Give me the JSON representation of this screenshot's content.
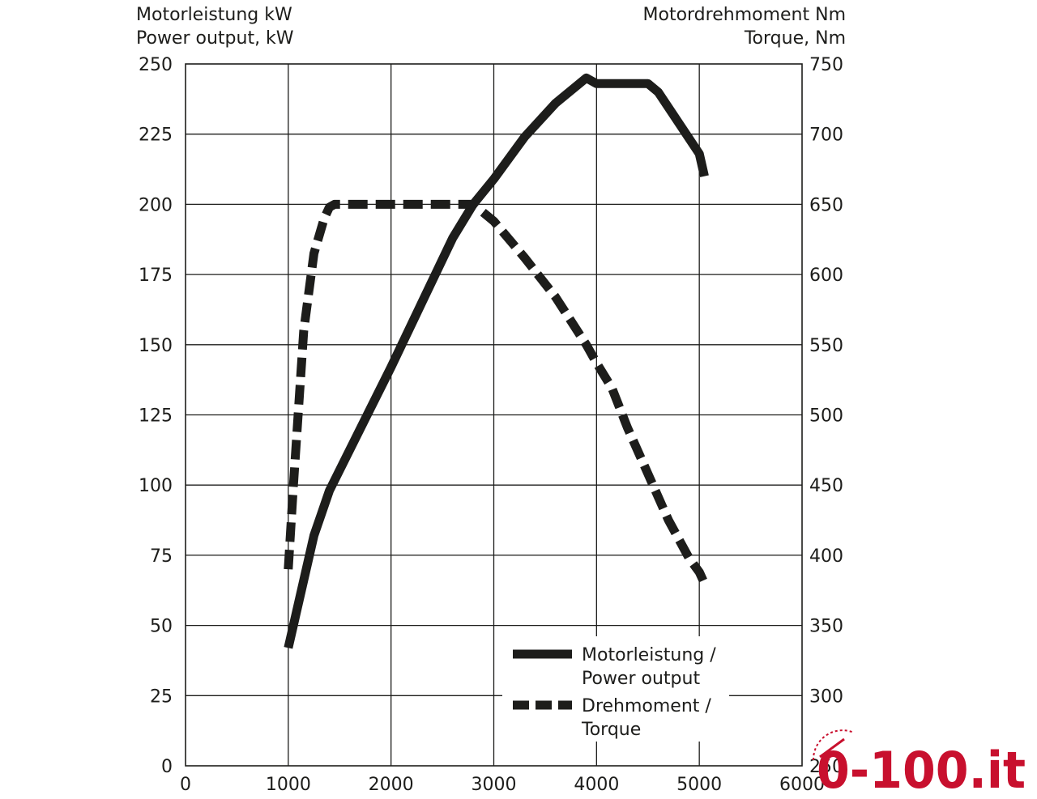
{
  "chart_data": {
    "type": "line",
    "left_axis": {
      "title_de": "Motorleistung kW",
      "title_en": "Power output, kW",
      "range": [
        0,
        250
      ],
      "ticks": [
        0,
        25,
        50,
        75,
        100,
        125,
        150,
        175,
        200,
        225,
        250
      ]
    },
    "right_axis": {
      "title_de": "Motordrehmoment Nm",
      "title_en": "Torque, Nm",
      "range": [
        250,
        750
      ],
      "ticks": [
        250,
        300,
        350,
        400,
        450,
        500,
        550,
        600,
        650,
        700,
        750
      ]
    },
    "x_axis": {
      "range": [
        0,
        6000
      ],
      "ticks": [
        0,
        1000,
        2000,
        3000,
        4000,
        5000,
        6000
      ]
    },
    "grid": true,
    "series": [
      {
        "name_line1": "Motorleistung /",
        "name_line2": "Power output",
        "axis": "left",
        "style": "solid",
        "x": [
          1000,
          1250,
          1400,
          1700,
          2000,
          2300,
          2600,
          2800,
          3000,
          3300,
          3600,
          3900,
          4000,
          4250,
          4500,
          4600,
          5000,
          5050
        ],
        "y": [
          42,
          82,
          98,
          120,
          142,
          165,
          188,
          200,
          209,
          224,
          236,
          245,
          243,
          243,
          243,
          240,
          218,
          210
        ]
      },
      {
        "name_line1": "Drehmoment /",
        "name_line2": "Torque",
        "axis": "right",
        "style": "dashed",
        "x": [
          1000,
          1050,
          1150,
          1250,
          1350,
          1400,
          1450,
          2800,
          3000,
          3300,
          3600,
          3900,
          4000,
          4150,
          4300,
          4500,
          4700,
          4900,
          5000,
          5050
        ],
        "y": [
          390,
          450,
          560,
          615,
          640,
          648,
          650,
          650,
          638,
          612,
          584,
          550,
          537,
          519,
          491,
          458,
          425,
          398,
          388,
          380
        ]
      }
    ]
  },
  "watermark": {
    "text": "0-100.it",
    "color": "#c8102e"
  }
}
